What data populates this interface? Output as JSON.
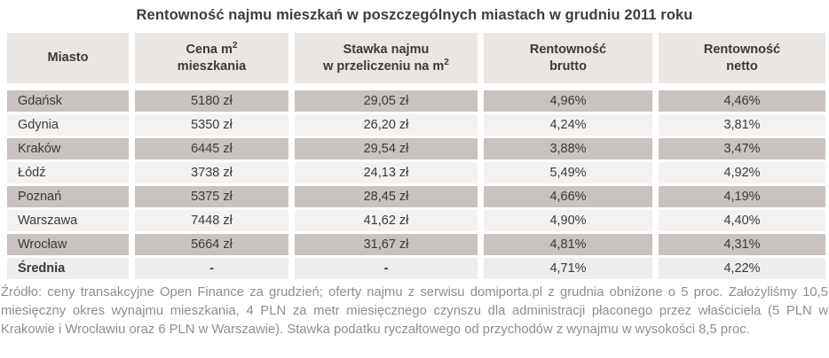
{
  "title": "Rentowność najmu mieszkań w poszczególnych miastach w grudniu 2011 roku",
  "table": {
    "headers": [
      {
        "line1": "Miasto"
      },
      {
        "line1": "Cena m",
        "sup": "2",
        "line2": "mieszkania"
      },
      {
        "line1": "Stawka najmu",
        "line2": "w przeliczeniu na m",
        "sup": "2"
      },
      {
        "line1": "Rentowność",
        "line2": "brutto"
      },
      {
        "line1": "Rentowność",
        "line2": "netto"
      }
    ],
    "rows": [
      {
        "city": "Gdańsk",
        "price": "5180 zł",
        "rent": "29,05 zł",
        "gross": "4,96%",
        "net": "4,46%"
      },
      {
        "city": "Gdynia",
        "price": "5350 zł",
        "rent": "26,20 zł",
        "gross": "4,24%",
        "net": "3,81%"
      },
      {
        "city": "Kraków",
        "price": "6445 zł",
        "rent": "29,54 zł",
        "gross": "3,88%",
        "net": "3,47%"
      },
      {
        "city": "Łódź",
        "price": "3738 zł",
        "rent": "24,13 zł",
        "gross": "5,49%",
        "net": "4,92%"
      },
      {
        "city": "Poznań",
        "price": "5375 zł",
        "rent": "28,45 zł",
        "gross": "4,66%",
        "net": "4,19%"
      },
      {
        "city": "Warszawa",
        "price": "7448 zł",
        "rent": "41,62 zł",
        "gross": "4,90%",
        "net": "4,40%"
      },
      {
        "city": "Wrocław",
        "price": "5664 zł",
        "rent": "31,67 zł",
        "gross": "4,81%",
        "net": "4,31%"
      },
      {
        "city": "Średnia",
        "price": "-",
        "rent": "-",
        "gross": "4,71%",
        "net": "4,22%"
      }
    ]
  },
  "footnote": "Źródło: ceny transakcyjne Open Finance za grudzień; oferty najmu z serwisu domiporta.pl z grudnia obniżone o 5 proc. Założyliśmy 10,5 miesięczny okres wynajmu mieszkania, 4 PLN za metr miesięcznego czynszu dla administracji płaconego przez właściciela (5 PLN w Krakowie i Wrocławiu oraz 6 PLN w Warszawie). Stawka podatku ryczałtowego od przychodów z wynajmu w wysokości 8,5 proc.",
  "colors": {
    "background": "#ffffff",
    "title_text": "#3d3d3d",
    "header_bg": "#e9e6e4",
    "row_dark_bg": "#c8c3c0",
    "row_light_bg": "#f4f2f1",
    "average_row_bg": "#efedec",
    "cell_text": "#3a3a3a",
    "footnote_text": "#8e8e8e"
  },
  "chart_data": {
    "type": "table",
    "title": "Rentowność najmu mieszkań w poszczególnych miastach w grudniu 2011 roku",
    "columns": [
      "Miasto",
      "Cena m2 mieszkania (zł)",
      "Stawka najmu w przeliczeniu na m2 (zł)",
      "Rentowność brutto (%)",
      "Rentowność netto (%)"
    ],
    "cities": [
      "Gdańsk",
      "Gdynia",
      "Kraków",
      "Łódź",
      "Poznań",
      "Warszawa",
      "Wrocław"
    ],
    "series": [
      {
        "name": "Cena m2 mieszkania (zł)",
        "values": [
          5180,
          5350,
          6445,
          3738,
          5375,
          7448,
          5664
        ]
      },
      {
        "name": "Stawka najmu w przeliczeniu na m2 (zł)",
        "values": [
          29.05,
          26.2,
          29.54,
          24.13,
          28.45,
          41.62,
          31.67
        ]
      },
      {
        "name": "Rentowność brutto (%)",
        "values": [
          4.96,
          4.24,
          3.88,
          5.49,
          4.66,
          4.9,
          4.81
        ]
      },
      {
        "name": "Rentowność netto (%)",
        "values": [
          4.46,
          3.81,
          3.47,
          4.92,
          4.19,
          4.4,
          4.31
        ]
      }
    ],
    "average": {
      "Rentowność brutto (%)": 4.71,
      "Rentowność netto (%)": 4.22
    }
  }
}
